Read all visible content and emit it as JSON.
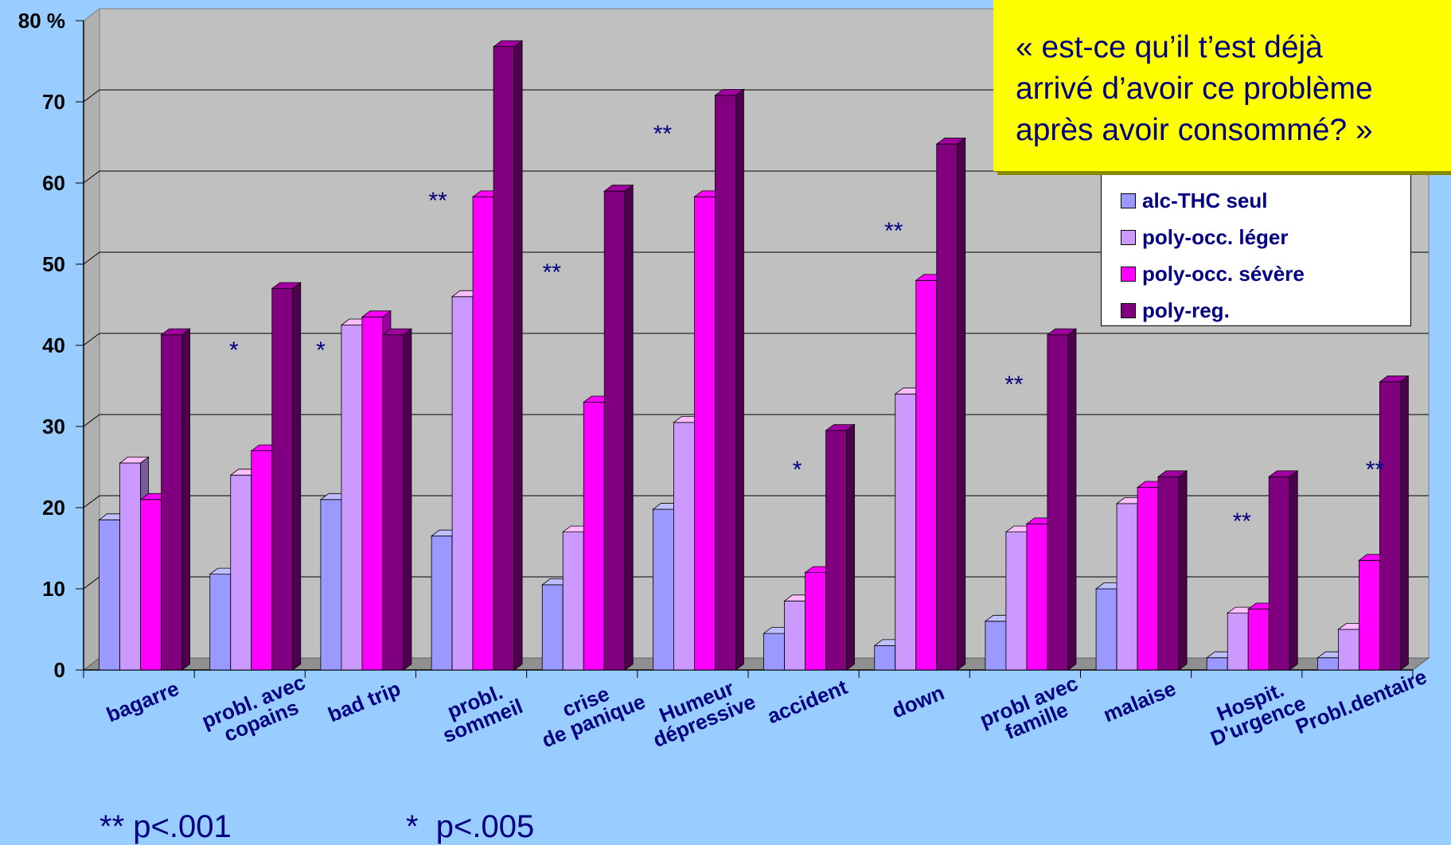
{
  "chart_data": {
    "type": "bar",
    "y_unit_label": "80 %",
    "ylim": [
      0,
      80
    ],
    "yticks": [
      0,
      10,
      20,
      30,
      40,
      50,
      60,
      70
    ],
    "grid": true,
    "legend_position": "top-right",
    "categories": [
      [
        "bagarre"
      ],
      [
        "probl. avec",
        "copains"
      ],
      [
        "bad trip"
      ],
      [
        "probl.",
        "sommeil"
      ],
      [
        "crise",
        "de panique"
      ],
      [
        "Humeur",
        "dépressive"
      ],
      [
        "accident"
      ],
      [
        "down"
      ],
      [
        "probl avec",
        "famille"
      ],
      [
        "malaise"
      ],
      [
        "Hospit.",
        "D'urgence"
      ],
      [
        "Probl.dentaire"
      ]
    ],
    "series": [
      {
        "name": "alc-THC seul",
        "color": "#9999ff",
        "values": [
          18.5,
          11.8,
          21,
          16.5,
          10.5,
          19.8,
          4.5,
          3,
          6,
          10,
          1.5,
          1.5
        ]
      },
      {
        "name": "poly-occ. léger",
        "color": "#cc99ff",
        "values": [
          25.5,
          24,
          42.5,
          46,
          17,
          30.5,
          8.5,
          34,
          17,
          20.5,
          7,
          5
        ]
      },
      {
        "name": "poly-occ. sévère",
        "color": "#ff00ff",
        "values": [
          21,
          27,
          43.5,
          58.3,
          33,
          58.3,
          12,
          48,
          18,
          22.5,
          7.5,
          13.5
        ]
      },
      {
        "name": "poly-reg.",
        "color": "#800080",
        "values": [
          41.3,
          47,
          41.3,
          76.8,
          59,
          70.8,
          29.5,
          64.8,
          41.3,
          23.8,
          23.8,
          35.5
        ]
      }
    ],
    "significance": [
      "",
      "*",
      "*",
      "**",
      "**",
      "**",
      "*",
      "**",
      "**",
      "",
      "**",
      "**"
    ],
    "footnotes": [
      "** p<.001",
      "*  p<.005"
    ]
  },
  "callout": {
    "lines": [
      "« est-ce qu’il t’est déjà",
      "arrivé d’avoir ce problème",
      "après avoir consommé? »"
    ]
  }
}
